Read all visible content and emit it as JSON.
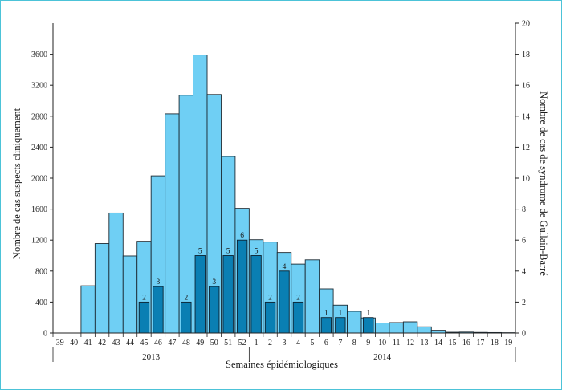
{
  "chart_data": {
    "type": "bar",
    "xlabel": "Semaines épidémiologiques",
    "ylabel_left": "Nombre de cas suspects cliniquement",
    "ylabel_right": "Nombre de cas de syndrome de Gullain-Barré",
    "ylim_left": [
      0,
      4000
    ],
    "yticks_left": [
      "0",
      "400",
      "800",
      "1200",
      "1600",
      "2000",
      "2400",
      "2800",
      "3200",
      "3600"
    ],
    "ylim_right": [
      0,
      20
    ],
    "yticks_right": [
      "0",
      "2",
      "4",
      "6",
      "8",
      "10",
      "12",
      "14",
      "16",
      "18",
      "20"
    ],
    "categories": [
      "39",
      "40",
      "41",
      "42",
      "43",
      "44",
      "45",
      "46",
      "47",
      "48",
      "49",
      "50",
      "51",
      "52",
      "1",
      "2",
      "3",
      "4",
      "5",
      "6",
      "7",
      "8",
      "9",
      "10",
      "11",
      "12",
      "13",
      "14",
      "15",
      "16",
      "17",
      "18",
      "19"
    ],
    "years": [
      {
        "label": "2013",
        "from": 0,
        "to": 13
      },
      {
        "label": "2014",
        "from": 14,
        "to": 32
      }
    ],
    "series": [
      {
        "name": "",
        "color": "#6fcff4",
        "axis": "left",
        "values": [
          0,
          0,
          610,
          1155,
          1550,
          995,
          1185,
          2030,
          2830,
          3070,
          3590,
          3080,
          2280,
          1610,
          1205,
          1175,
          1040,
          890,
          945,
          570,
          360,
          280,
          195,
          130,
          135,
          145,
          80,
          35,
          10,
          12,
          8,
          6,
          4
        ]
      },
      {
        "name": "",
        "color": "#0a7fb3",
        "axis": "right",
        "values": [
          0,
          0,
          0,
          0,
          0,
          0,
          2,
          3,
          0,
          2,
          5,
          3,
          5,
          6,
          5,
          2,
          4,
          2,
          0,
          1,
          1,
          0,
          1,
          0,
          0,
          0,
          0,
          0,
          0,
          0,
          0,
          0,
          0
        ],
        "labels": [
          "",
          "",
          "",
          "",
          "",
          "",
          "2",
          "3",
          "",
          "2",
          "5",
          "3",
          "5",
          "6",
          "5",
          "2",
          "4",
          "2",
          "",
          "1",
          "1",
          "",
          "1",
          "",
          "",
          "",
          "",
          "",
          "",
          "",
          "",
          "",
          ""
        ]
      }
    ],
    "grid": false,
    "legend": "none"
  }
}
